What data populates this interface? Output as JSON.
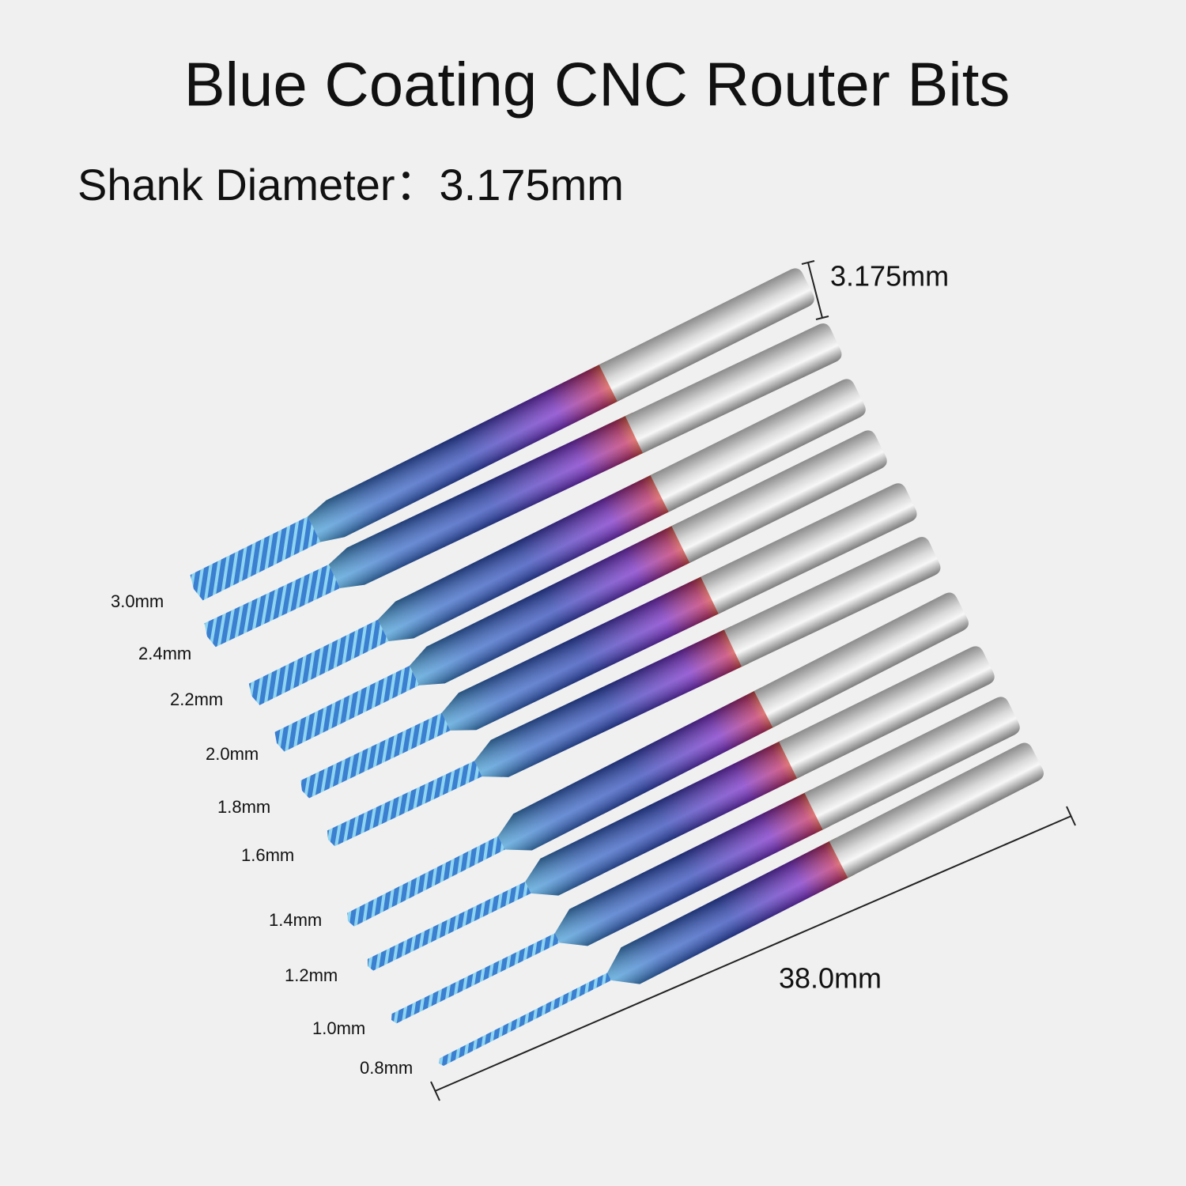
{
  "header": {
    "title": "Blue Coating CNC Router Bits",
    "subtitle": "Shank Diameter：3.175mm"
  },
  "dimensions": {
    "shank": "3.175mm",
    "length": "38.0mm"
  },
  "bits": [
    {
      "label": "3.0mm"
    },
    {
      "label": "2.4mm"
    },
    {
      "label": "2.2mm"
    },
    {
      "label": "2.0mm"
    },
    {
      "label": "1.8mm"
    },
    {
      "label": "1.6mm"
    },
    {
      "label": "1.4mm"
    },
    {
      "label": "1.2mm"
    },
    {
      "label": "1.0mm"
    },
    {
      "label": "0.8mm"
    }
  ]
}
